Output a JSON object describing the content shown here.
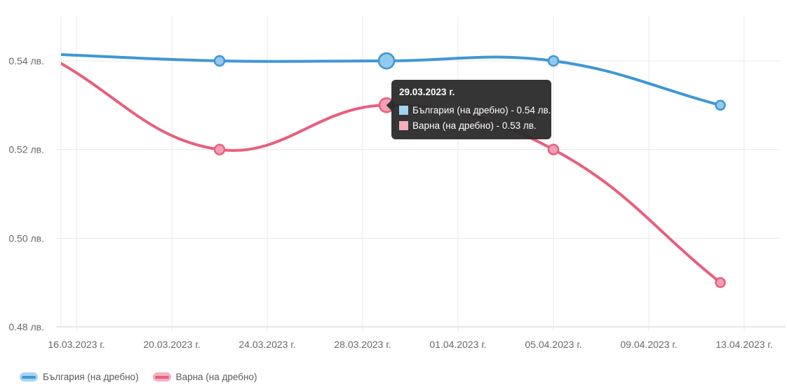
{
  "chart_data": {
    "type": "line",
    "title": "",
    "xlabel": "",
    "ylabel": "",
    "x_tick_labels": [
      "16.03.2023 г.",
      "20.03.2023 г.",
      "24.03.2023 г.",
      "28.03.2023 г.",
      "01.04.2023 г.",
      "05.04.2023 г.",
      "09.04.2023 г.",
      "13.04.2023 г."
    ],
    "y_tick_labels": [
      "0.48 лв.",
      "0.50 лв.",
      "0.52 лв.",
      "0.54 лв."
    ],
    "y_ticks": [
      0.48,
      0.5,
      0.52,
      0.54
    ],
    "ylim": [
      0.48,
      0.5501
    ],
    "grid": true,
    "legend_position": "bottom-left",
    "series": [
      {
        "name": "България (на дребно)",
        "color": "#3f97d4",
        "point_fill": "#93c9ee",
        "legend_tint": "#a7d4f1",
        "dates": [
          "15.03.2023",
          "22.03.2023",
          "29.03.2023",
          "05.04.2023",
          "12.04.2023"
        ],
        "x_days_from_first_tick": [
          -1,
          6,
          13,
          20,
          27
        ],
        "values": [
          0.5415,
          0.54,
          0.54,
          0.54,
          0.53
        ],
        "point_radii": [
          7,
          7,
          11,
          7,
          6.5
        ]
      },
      {
        "name": "Варна (на дребно)",
        "color": "#e85f7e",
        "point_fill": "#f2a0b7",
        "legend_tint": "#f5afc3",
        "dates": [
          "15.03.2023",
          "22.03.2023",
          "29.03.2023",
          "05.04.2023",
          "12.04.2023"
        ],
        "x_days_from_first_tick": [
          -1,
          6,
          13,
          20,
          27
        ],
        "values": [
          0.5405,
          0.52,
          0.53,
          0.52,
          0.49
        ],
        "point_radii": [
          7,
          7,
          10,
          7,
          6.5
        ]
      }
    ],
    "hovered_point": {
      "series_values": [
        0.54,
        0.53
      ],
      "date_label": "29.03.2023 г.",
      "point_index": 2
    }
  },
  "tooltip": {
    "title": "29.03.2023 г.",
    "rows": [
      {
        "text": "България (на дребно) - 0.54 лв.",
        "swatch": "#a3d3f2"
      },
      {
        "text": "Варна (на дребно) - 0.53 лв.",
        "swatch": "#f7abbf"
      }
    ]
  },
  "colors": {
    "grid": "#e9e9e9",
    "axis_line": "#cfcfcf",
    "tick_label": "#696969",
    "tooltip_bg": "#2a2a2a"
  }
}
